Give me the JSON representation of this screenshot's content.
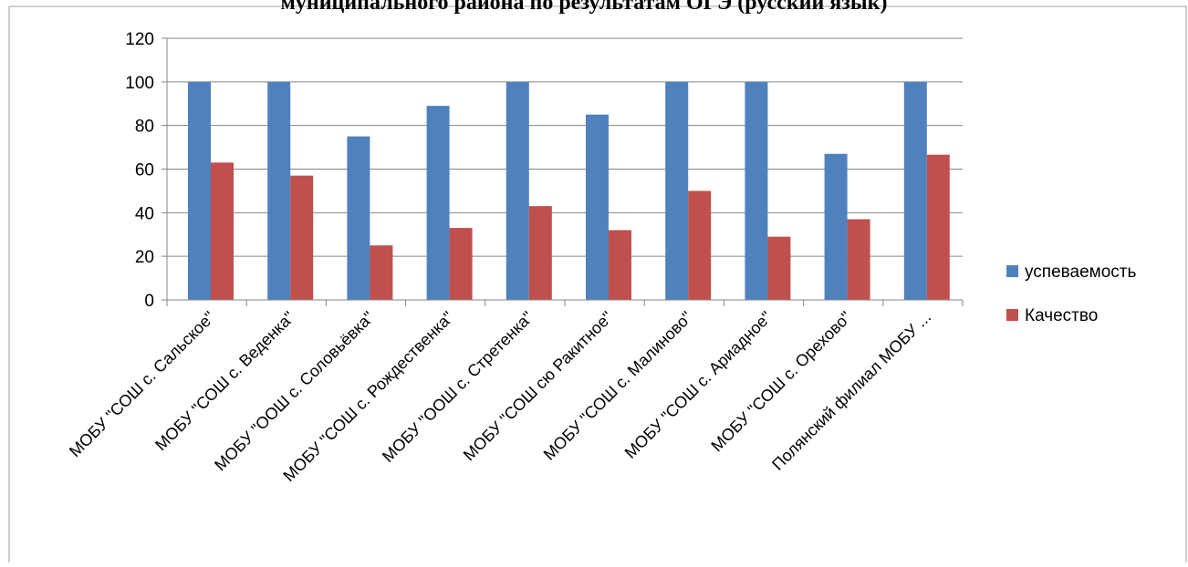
{
  "chart_data": {
    "type": "bar",
    "title": "муниципального района по результатам ОГЭ (русский язык)",
    "categories": [
      "МОБУ \"СОШ с. Сальское\"",
      "МОБУ \"СОШ с. Веденка\"",
      "МОБУ \"ООШ с. Соловьёвка\"",
      "МОБУ \"СОШ с. Рождественка\"",
      "МОБУ \"ООШ с. Стретенка\"",
      "МОБУ \"СОШ сю Ракитное\"",
      "МОБУ \"СОШ с. Малиново\"",
      "МОБУ \"СОШ с. Ариадное\"",
      "МОБУ \"СОШ с. Орехово\"",
      "Полянский филиал МОБУ ..."
    ],
    "series": [
      {
        "name": "успеваемость",
        "color": "#4F81BD",
        "values": [
          100,
          100,
          75,
          89,
          100,
          85,
          100,
          100,
          67,
          100
        ]
      },
      {
        "name": "Качество",
        "color": "#C0504D",
        "values": [
          63,
          57,
          25,
          33,
          43,
          32,
          50,
          29,
          37,
          66.6
        ]
      }
    ],
    "ylim": [
      0,
      120
    ],
    "yticks": [
      "0",
      "20",
      "40",
      "60",
      "80",
      "100",
      "120"
    ],
    "grid": true,
    "legend_position": "right"
  }
}
